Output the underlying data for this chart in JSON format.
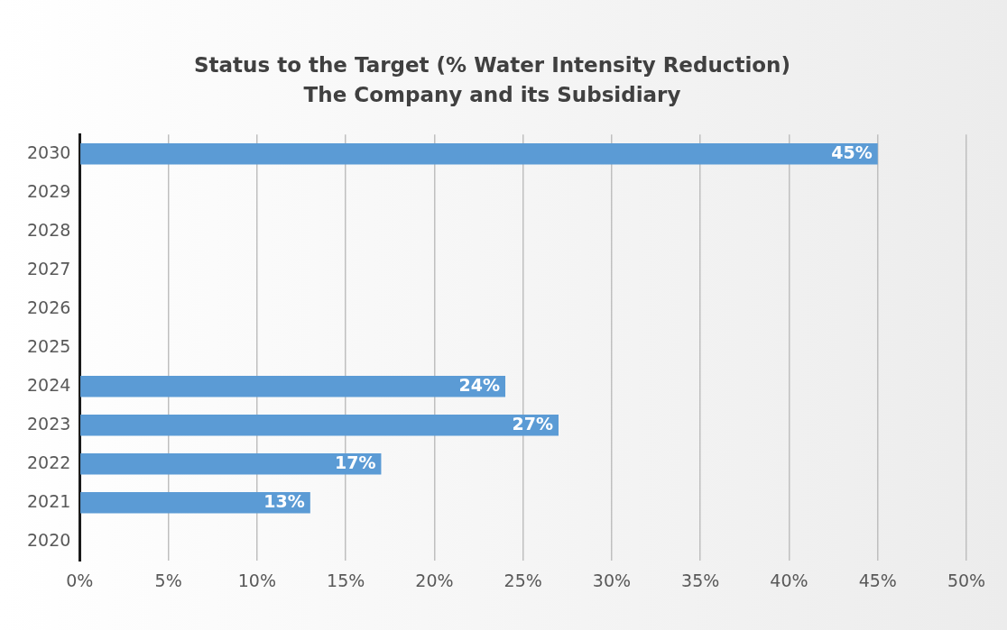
{
  "chart_data": {
    "type": "bar",
    "orientation": "horizontal",
    "title": "Status to the Target (% Water Intensity Reduction)",
    "subtitle": "The Company and its Subsidiary",
    "categories": [
      "2030",
      "2029",
      "2028",
      "2027",
      "2026",
      "2025",
      "2024",
      "2023",
      "2022",
      "2021",
      "2020"
    ],
    "values": [
      45,
      null,
      null,
      null,
      null,
      null,
      24,
      27,
      17,
      13,
      null
    ],
    "value_labels": [
      "45%",
      null,
      null,
      null,
      null,
      null,
      "24%",
      "27%",
      "17%",
      "13%",
      null
    ],
    "color": "#5b9bd5",
    "xlim": [
      0,
      50
    ],
    "xticks": [
      {
        "value": 0,
        "label": "0%"
      },
      {
        "value": 5,
        "label": "5%"
      },
      {
        "value": 10,
        "label": "10%"
      },
      {
        "value": 15,
        "label": "15%"
      },
      {
        "value": 20,
        "label": "20%"
      },
      {
        "value": 25,
        "label": "25%"
      },
      {
        "value": 30,
        "label": "30%"
      },
      {
        "value": 35,
        "label": "35%"
      },
      {
        "value": 40,
        "label": "40%"
      },
      {
        "value": 45,
        "label": "45%"
      },
      {
        "value": 50,
        "label": "50%"
      }
    ],
    "grid": "x",
    "legend": false
  }
}
